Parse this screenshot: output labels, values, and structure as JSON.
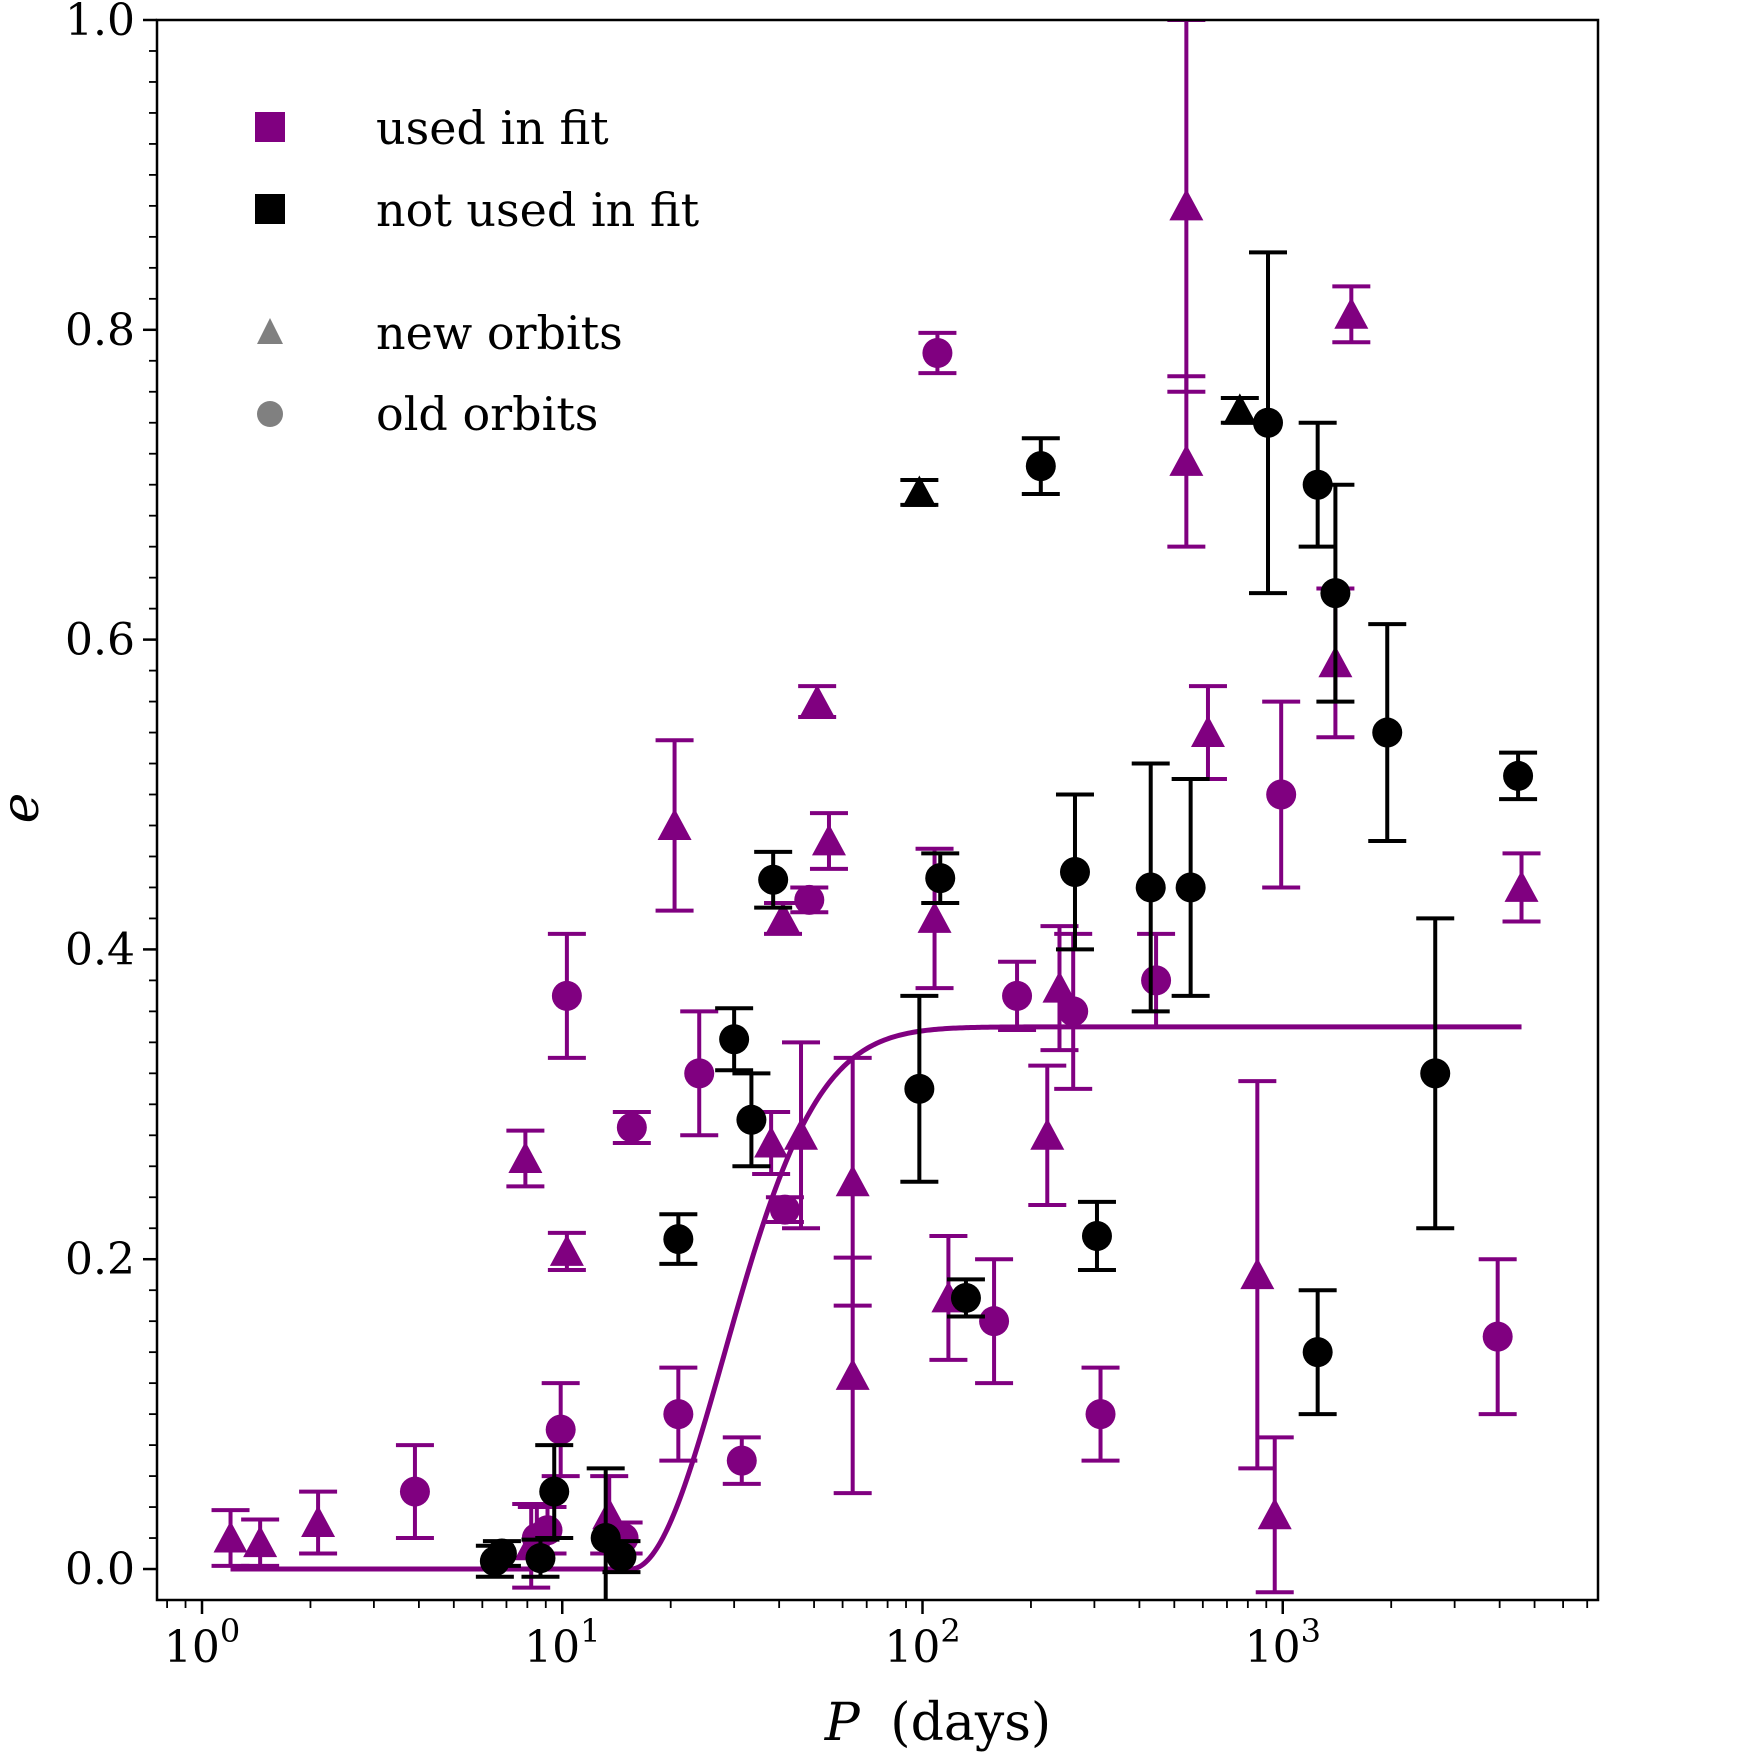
{
  "chart_data": {
    "type": "scatter",
    "title": "",
    "xlabel_var": "P",
    "xlabel_unit": "(days)",
    "ylabel": "e",
    "xscale": "log",
    "xlim": [
      0.75,
      7500
    ],
    "ylim": [
      -0.02,
      1.0
    ],
    "yticks": [
      "0.0",
      "0.2",
      "0.4",
      "0.6",
      "0.8",
      "1.0"
    ],
    "xticks": [
      {
        "base": "10",
        "exp": "0"
      },
      {
        "base": "10",
        "exp": "1"
      },
      {
        "base": "10",
        "exp": "2"
      },
      {
        "base": "10",
        "exp": "3"
      }
    ],
    "colors": {
      "used": "#800080",
      "not_used": "#000000",
      "legend_shape": "#808080"
    },
    "legend": {
      "position": "top-left",
      "entries": [
        {
          "label": "used in fit",
          "marker": "square",
          "color": "#800080"
        },
        {
          "label": "not used in fit",
          "marker": "square",
          "color": "#000000"
        },
        {
          "label": "new orbits",
          "marker": "triangle",
          "color": "#808080"
        },
        {
          "label": "old orbits",
          "marker": "circle",
          "color": "#808080"
        }
      ]
    },
    "fit_curve": {
      "e_max": 0.35,
      "p_cut": 15.5,
      "steepness": 7.5,
      "x_range": [
        1.2,
        4600
      ]
    },
    "series": [
      {
        "name": "used in fit, new orbits",
        "color": "#800080",
        "marker": "triangle",
        "points": [
          [
            1.2,
            0.02,
            0.018
          ],
          [
            1.45,
            0.017,
            0.015
          ],
          [
            2.1,
            0.03,
            0.02
          ],
          [
            7.9,
            0.265,
            0.018
          ],
          [
            8.2,
            0.015,
            0.027
          ],
          [
            10.3,
            0.205,
            0.012
          ],
          [
            13.5,
            0.035,
            0.025
          ],
          [
            20.5,
            0.48,
            0.055
          ],
          [
            38,
            0.275,
            0.02
          ],
          [
            41,
            0.42,
            0.01
          ],
          [
            46,
            0.28,
            0.06
          ],
          [
            51,
            0.56,
            0.01
          ],
          [
            55,
            0.47,
            0.018
          ],
          [
            64,
            0.25,
            0.08
          ],
          [
            64,
            0.125,
            0.076
          ],
          [
            108,
            0.42,
            0.045
          ],
          [
            118,
            0.175,
            0.04
          ],
          [
            222,
            0.28,
            0.045
          ],
          [
            240,
            0.375,
            0.04
          ],
          [
            540,
            0.88,
            0.12
          ],
          [
            540,
            0.715,
            0.055
          ],
          [
            620,
            0.54,
            0.03
          ],
          [
            850,
            0.19,
            0.125
          ],
          [
            950,
            0.035,
            0.05
          ],
          [
            1400,
            0.585,
            0.048
          ],
          [
            1550,
            0.81,
            0.018
          ],
          [
            4600,
            0.44,
            0.022
          ]
        ]
      },
      {
        "name": "used in fit, old orbits",
        "color": "#800080",
        "marker": "circle",
        "points": [
          [
            3.9,
            0.05,
            0.03
          ],
          [
            8.5,
            0.02,
            0.02
          ],
          [
            9.1,
            0.025,
            0.015
          ],
          [
            9.9,
            0.09,
            0.03
          ],
          [
            10.3,
            0.37,
            0.04
          ],
          [
            14.8,
            0.02,
            0.01
          ],
          [
            15.6,
            0.285,
            0.01
          ],
          [
            21,
            0.1,
            0.03
          ],
          [
            24,
            0.32,
            0.04
          ],
          [
            31.5,
            0.07,
            0.015
          ],
          [
            41.5,
            0.232,
            0.008
          ],
          [
            48.5,
            0.432,
            0.008
          ],
          [
            110,
            0.785,
            0.013
          ],
          [
            158,
            0.16,
            0.04
          ],
          [
            183,
            0.37,
            0.022
          ],
          [
            262,
            0.36,
            0.05
          ],
          [
            312,
            0.1,
            0.03
          ],
          [
            445,
            0.38,
            0.03
          ],
          [
            990,
            0.5,
            0.06
          ],
          [
            3950,
            0.15,
            0.05
          ]
        ]
      },
      {
        "name": "not used in fit, new orbits",
        "color": "#000000",
        "marker": "triangle",
        "points": [
          [
            98,
            0.695,
            0.008
          ],
          [
            760,
            0.748,
            0.008
          ]
        ]
      },
      {
        "name": "not used in fit, old orbits",
        "color": "#000000",
        "marker": "circle",
        "points": [
          [
            6.5,
            0.005,
            0.01
          ],
          [
            6.8,
            0.01,
            0.008
          ],
          [
            8.7,
            0.007,
            0.012
          ],
          [
            9.5,
            0.05,
            0.03
          ],
          [
            13.2,
            0.02,
            0.045
          ],
          [
            14.6,
            0.008,
            0.01
          ],
          [
            21,
            0.213,
            0.016
          ],
          [
            30,
            0.342,
            0.02
          ],
          [
            33.5,
            0.29,
            0.03
          ],
          [
            38.5,
            0.445,
            0.018
          ],
          [
            98,
            0.31,
            0.06
          ],
          [
            112,
            0.446,
            0.016
          ],
          [
            132,
            0.175,
            0.012
          ],
          [
            213,
            0.712,
            0.018
          ],
          [
            265,
            0.45,
            0.05
          ],
          [
            305,
            0.215,
            0.022
          ],
          [
            430,
            0.44,
            0.08
          ],
          [
            555,
            0.44,
            0.07
          ],
          [
            910,
            0.74,
            0.11
          ],
          [
            1250,
            0.7,
            0.04
          ],
          [
            1250,
            0.14,
            0.04
          ],
          [
            1400,
            0.63,
            0.07
          ],
          [
            1950,
            0.54,
            0.07
          ],
          [
            2650,
            0.32,
            0.1
          ],
          [
            4500,
            0.512,
            0.015
          ]
        ]
      }
    ]
  }
}
